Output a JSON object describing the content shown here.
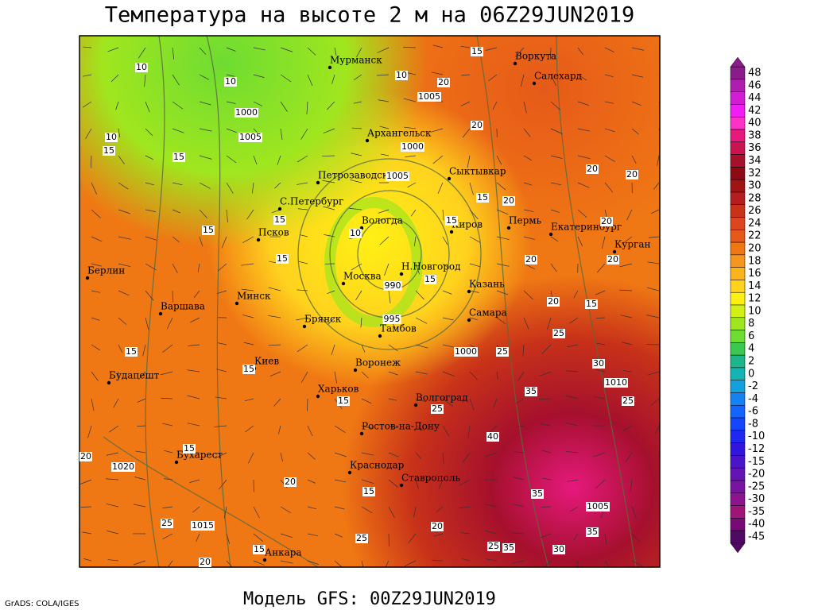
{
  "title": "Температура на высоте 2 м на 06Z29JUN2019",
  "footer": {
    "credit": "GrADS: COLA/IGES",
    "model": "Модель GFS: 00Z29JUN2019"
  },
  "cities": [
    "Мурманск",
    "Воркута",
    "Салехард",
    "Архангельск",
    "Сыктывкар",
    "Петрозаводск",
    "С.Петербург",
    "Вологда",
    "Киров",
    "Пермь",
    "Екатеринбург",
    "Курган",
    "Псков",
    "Берлин",
    "Москва",
    "Н.Новгород",
    "Казань",
    "Минск",
    "Варшава",
    "Брянск",
    "Самара",
    "Тамбов",
    "Воронеж",
    "Киев",
    "Будапешт",
    "Харьков",
    "Волгоград",
    "Ростов-на-Дону",
    "Бухарест",
    "Краснодар",
    "Ставрополь",
    "Анкара"
  ],
  "contour_labels": [
    "10",
    "10",
    "1000",
    "1005",
    "10",
    "15",
    "15",
    "10",
    "15",
    "20",
    "1005",
    "1000",
    "1005",
    "20",
    "20",
    "20",
    "15",
    "20",
    "15",
    "20",
    "15",
    "15",
    "10",
    "15",
    "20",
    "20",
    "990",
    "15",
    "20",
    "15",
    "995",
    "25",
    "1000",
    "25",
    "15",
    "15",
    "30",
    "1010",
    "35",
    "25",
    "15",
    "25",
    "40",
    "15",
    "20",
    "1020",
    "20",
    "15",
    "35",
    "1005",
    "25",
    "1015",
    "25",
    "20",
    "35",
    "15",
    "25",
    "35",
    "30",
    "20"
  ],
  "colorbar": {
    "labels": [
      48,
      46,
      44,
      42,
      40,
      38,
      36,
      34,
      32,
      30,
      28,
      26,
      24,
      22,
      20,
      18,
      16,
      14,
      12,
      10,
      8,
      6,
      4,
      2,
      0,
      -2,
      -4,
      -6,
      -8,
      -10,
      -12,
      -15,
      -20,
      -25,
      -30,
      -35,
      -40,
      -45
    ],
    "colors": [
      "#8b1a8b",
      "#b01eb0",
      "#d21ed2",
      "#f01ef0",
      "#ff32c8",
      "#e6197d",
      "#c81450",
      "#a5102d",
      "#8c0a14",
      "#a01414",
      "#b41e1e",
      "#c83219",
      "#dc461e",
      "#e65a19",
      "#f07814",
      "#f5961e",
      "#fab41e",
      "#ffd21e",
      "#fff014",
      "#d2f014",
      "#a0e61e",
      "#6edc32",
      "#3cc850",
      "#1eb48c",
      "#14b4b4",
      "#14a0dc",
      "#1482f0",
      "#1464ff",
      "#1446ff",
      "#1e28f0",
      "#3214dc",
      "#4b14c8",
      "#6414b4",
      "#7814a0",
      "#8c148c",
      "#a01478",
      "#780a78",
      "#500a64"
    ]
  }
}
